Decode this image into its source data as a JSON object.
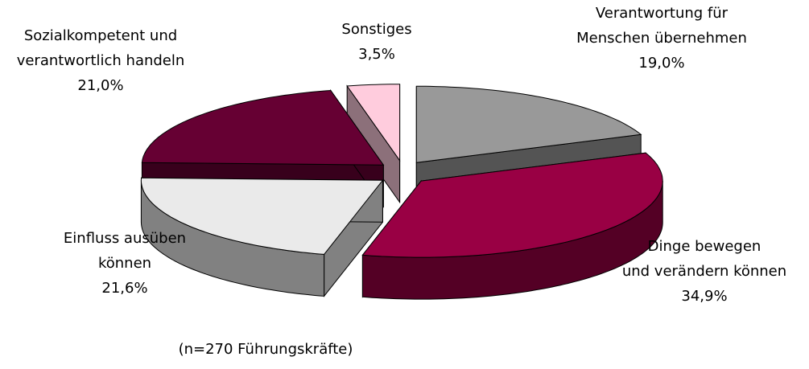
{
  "chart_data": {
    "type": "pie3d",
    "categories": [
      "Verantwortung für\nMenschen übernehmen",
      "Dinge bewegen\nund verändern können",
      "Einfluss ausüben\nkönnen",
      "Sozialkompetent und\nverantwortlich handeln",
      "Sonstiges"
    ],
    "values": [
      19.0,
      34.9,
      21.6,
      21.0,
      3.5
    ],
    "value_labels": [
      "19,0%",
      "34,9%",
      "21,6%",
      "21,0%",
      "3,5%"
    ],
    "colors": [
      "#999999",
      "#990044",
      "#eaeaea",
      "#660033",
      "#ffccdd"
    ],
    "annotation": "(n=270 Führungskräfte)"
  }
}
